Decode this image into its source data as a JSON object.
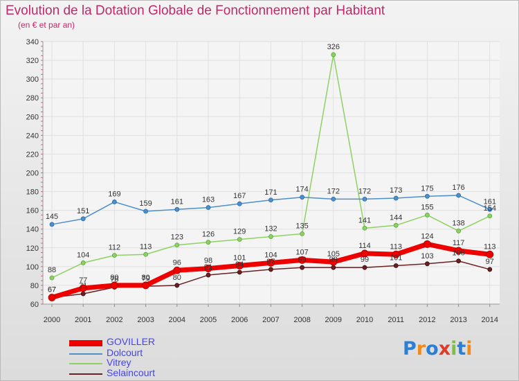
{
  "chart_data": {
    "type": "line",
    "title": "Evolution de la Dotation Globale de Fonctionnement par Habitant",
    "subtitle": "(en € et par an)",
    "x": [
      "2000",
      "2001",
      "2002",
      "2003",
      "2004",
      "2005",
      "2006",
      "2007",
      "2008",
      "2009",
      "2010",
      "2011",
      "2012",
      "2013",
      "2014"
    ],
    "ylim": [
      60,
      340
    ],
    "yticks": [
      60,
      80,
      100,
      120,
      140,
      160,
      180,
      200,
      220,
      240,
      260,
      280,
      300,
      320,
      340
    ],
    "grid": true,
    "legend_position": "bottom-left",
    "series": [
      {
        "name": "GOVILLER",
        "color": "#ee0000",
        "values": [
          67,
          77,
          80,
          80,
          96,
          98,
          101,
          104,
          107,
          105,
          114,
          113,
          124,
          117,
          113
        ],
        "labels": [
          "67",
          "77",
          "80",
          "80",
          "96",
          "98",
          "101",
          "104",
          "107",
          "105",
          "114",
          "113",
          "124",
          "117",
          "113"
        ]
      },
      {
        "name": "Dolcourt",
        "color": "#4d8fc9",
        "values": [
          145,
          151,
          169,
          159,
          161,
          163,
          167,
          171,
          174,
          172,
          172,
          173,
          175,
          176,
          161
        ],
        "labels": [
          "145",
          "151",
          "169",
          "159",
          "161",
          "163",
          "167",
          "171",
          "174",
          "172",
          "172",
          "173",
          "175",
          "176",
          "161"
        ]
      },
      {
        "name": "Vitrey",
        "color": "#8ed163",
        "values": [
          88,
          104,
          112,
          113,
          123,
          126,
          129,
          132,
          135,
          326,
          141,
          144,
          155,
          138,
          154
        ],
        "labels": [
          "88",
          "104",
          "112",
          "113",
          "123",
          "126",
          "129",
          "132",
          "135",
          "326",
          "141",
          "144",
          "155",
          "138",
          "154"
        ]
      },
      {
        "name": "Selaincourt",
        "color": "#6a1f22",
        "values": [
          67,
          71,
          78,
          79,
          80,
          91,
          94,
          97,
          99,
          99,
          99,
          101,
          103,
          106,
          97
        ],
        "labels": [
          "67",
          "71",
          "78",
          "79",
          "80",
          "91",
          "94",
          "97",
          "99",
          "99",
          "99",
          "101",
          "103",
          "106",
          "97"
        ]
      }
    ]
  },
  "logo": {
    "text": "Proxiti"
  }
}
